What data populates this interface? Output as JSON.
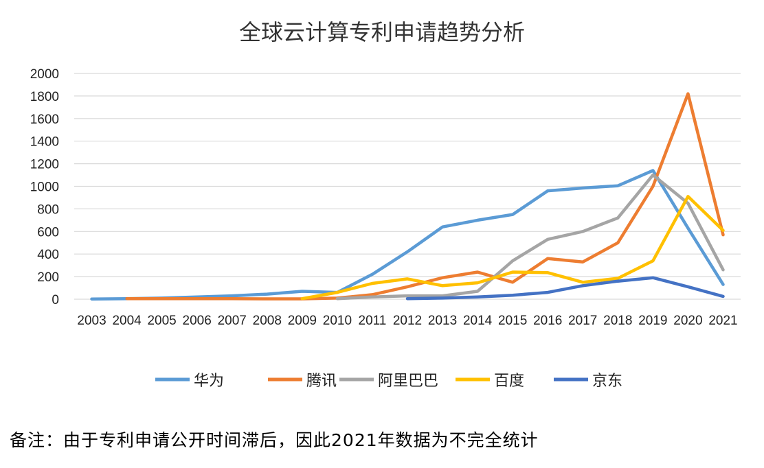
{
  "chart_data": {
    "type": "line",
    "title": "全球云计算专利申请趋势分析",
    "xlabel": "",
    "ylabel": "",
    "ylim": [
      0,
      2000
    ],
    "yticks": [
      0,
      200,
      400,
      600,
      800,
      1000,
      1200,
      1400,
      1600,
      1800,
      2000
    ],
    "grid": true,
    "legend_position": "bottom",
    "categories": [
      "2003",
      "2004",
      "2005",
      "2006",
      "2007",
      "2008",
      "2009",
      "2010",
      "2011",
      "2012",
      "2013",
      "2014",
      "2015",
      "2016",
      "2017",
      "2018",
      "2019",
      "2020",
      "2021"
    ],
    "series": [
      {
        "name": "华为",
        "color": "#5B9BD5",
        "values": [
          2,
          5,
          10,
          20,
          30,
          45,
          70,
          60,
          220,
          420,
          640,
          700,
          750,
          960,
          985,
          1005,
          1140,
          630,
          130
        ]
      },
      {
        "name": "腾讯",
        "color": "#ED7D31",
        "values": [
          null,
          5,
          5,
          5,
          5,
          3,
          3,
          10,
          40,
          110,
          190,
          240,
          150,
          360,
          330,
          500,
          1000,
          1820,
          570
        ]
      },
      {
        "name": "阿里巴巴",
        "color": "#A5A5A5",
        "values": [
          null,
          null,
          null,
          null,
          null,
          null,
          null,
          5,
          20,
          30,
          30,
          70,
          340,
          530,
          600,
          720,
          1100,
          850,
          260
        ]
      },
      {
        "name": "百度",
        "color": "#FFC000",
        "values": [
          null,
          null,
          null,
          null,
          null,
          null,
          5,
          60,
          140,
          180,
          120,
          145,
          240,
          235,
          150,
          185,
          340,
          910,
          610
        ]
      },
      {
        "name": "京东",
        "color": "#4472C4",
        "values": [
          null,
          null,
          null,
          null,
          null,
          null,
          null,
          null,
          null,
          5,
          10,
          20,
          35,
          60,
          120,
          160,
          190,
          110,
          25
        ]
      }
    ]
  },
  "footnote": "备注：由于专利申请公开时间滞后，因此2021年数据为不完全统计"
}
